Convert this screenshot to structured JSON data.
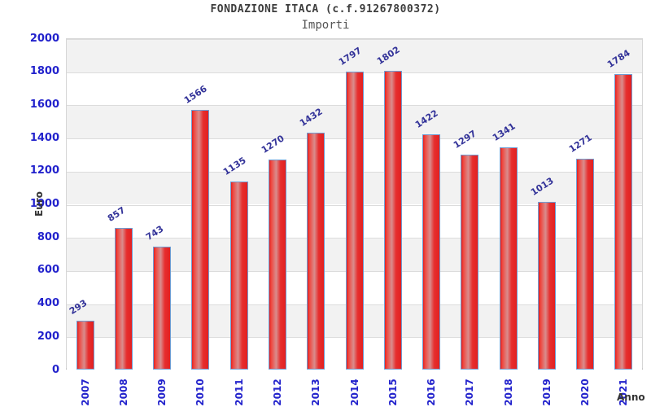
{
  "header": {
    "title": "FONDAZIONE ITACA (c.f.91267800372)",
    "subtitle": "Importi"
  },
  "chart_data": {
    "type": "bar",
    "title": "FONDAZIONE ITACA (c.f.91267800372)",
    "subtitle": "Importi",
    "xlabel": "Anno",
    "ylabel": "Euro",
    "categories": [
      "2007",
      "2008",
      "2009",
      "2010",
      "2011",
      "2012",
      "2013",
      "2014",
      "2015",
      "2016",
      "2017",
      "2018",
      "2019",
      "2020",
      "2021"
    ],
    "values": [
      293,
      857,
      743,
      1566,
      1135,
      1270,
      1432,
      1797,
      1802,
      1422,
      1297,
      1341,
      1013,
      1271,
      1784
    ],
    "ylim": [
      0,
      2000
    ],
    "ytick_step": 200,
    "grid": "horizontal-alternating-bands",
    "legend": "none",
    "colors": {
      "bar_fill_edge": "#e32020",
      "bar_fill_mid": "#d98d8d",
      "bar_border": "#6f9ed4",
      "tick_label": "#2222cc",
      "value_label": "#333399",
      "band_gray": "#f2f2f2",
      "band_white": "#ffffff"
    }
  }
}
